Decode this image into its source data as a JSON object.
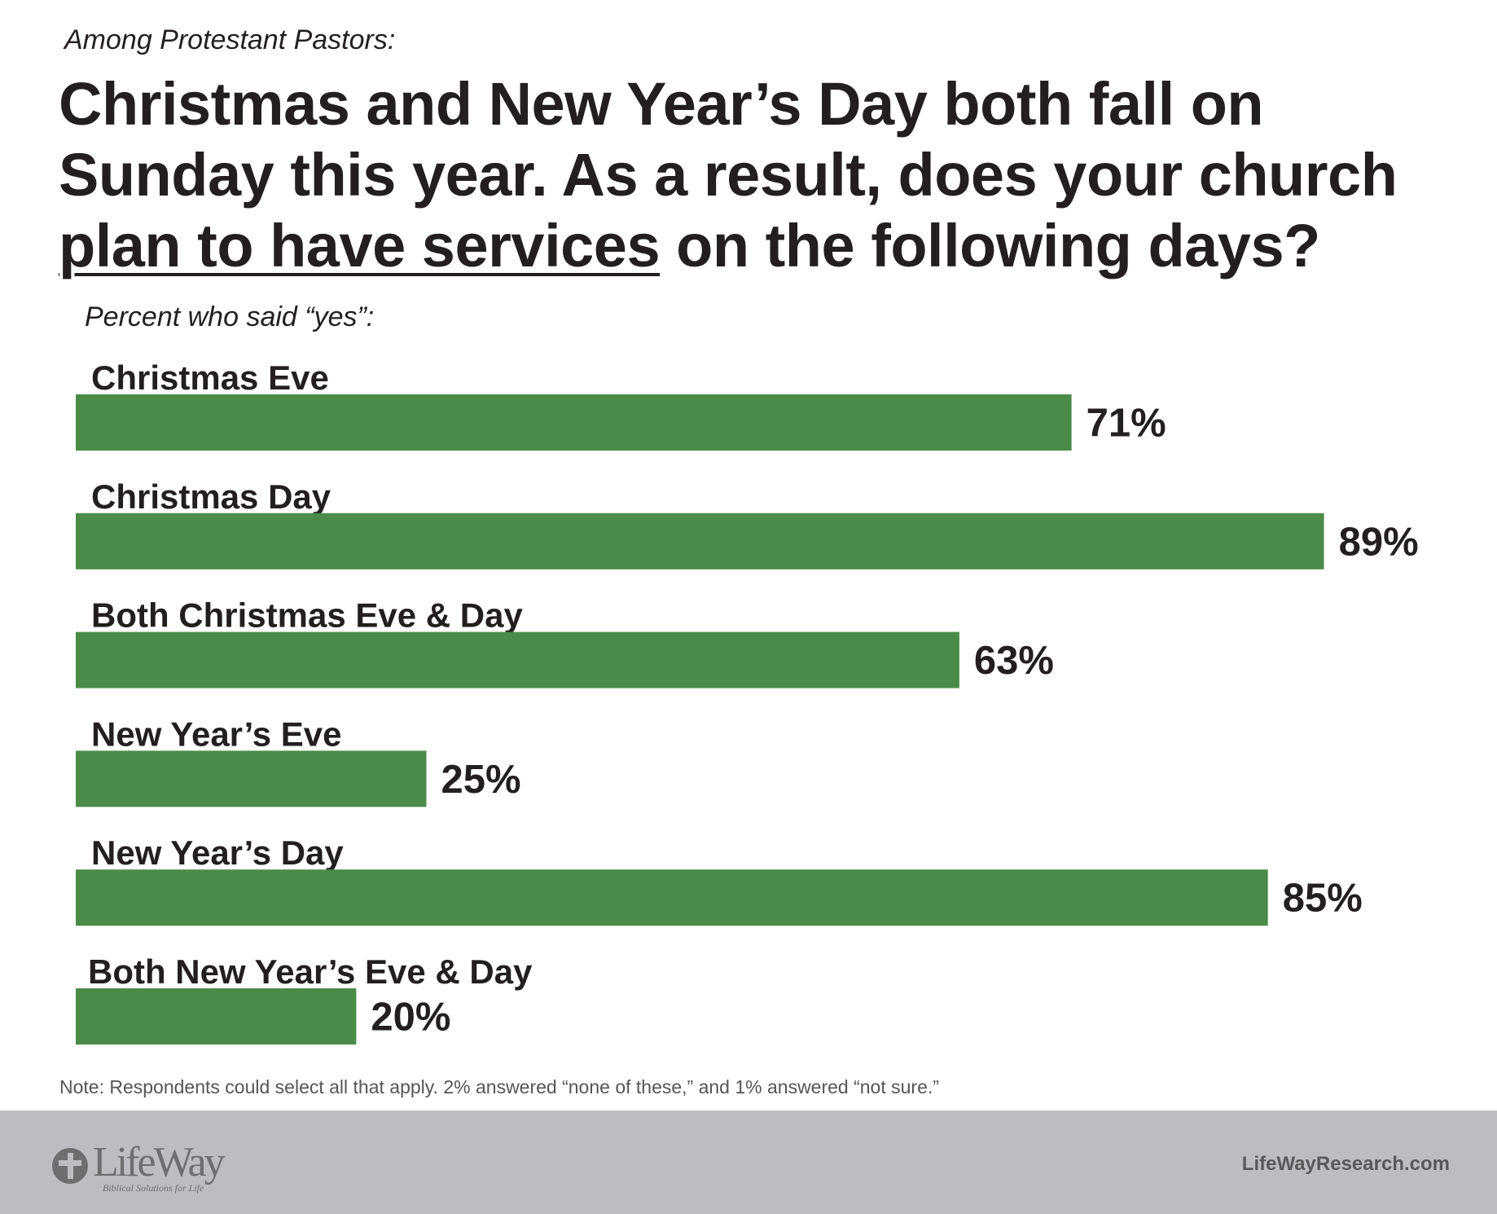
{
  "chart_data": {
    "type": "bar",
    "orientation": "horizontal",
    "subtitle": "Among Protestant Pastors:",
    "title_parts": [
      "Christmas and New Year’s Day both fall on Sunday this year. As a result, does your church ",
      "plan to have services",
      " on the following days?"
    ],
    "ylabel": "Percent who said “yes”:",
    "categories": [
      "Christmas Eve",
      "Christmas Day",
      "Both Christmas Eve & Day",
      "New Year’s Eve",
      "New Year’s Day",
      "Both New Year’s Eve & Day"
    ],
    "values": [
      71,
      89,
      63,
      25,
      85,
      20
    ],
    "value_labels": [
      "71%",
      "89%",
      "63%",
      "25%",
      "85%",
      "20%"
    ],
    "xlim": [
      0,
      100
    ],
    "grid": false,
    "bar_color": "#4a8c47"
  },
  "note": "Note: Respondents could select all that apply. 2% answered “none of these,” and 1% answered “not sure.”",
  "footer": {
    "logo_text": "LifeWay",
    "logo_tagline": "Biblical Solutions for Life",
    "site": "LifeWayResearch.com"
  }
}
